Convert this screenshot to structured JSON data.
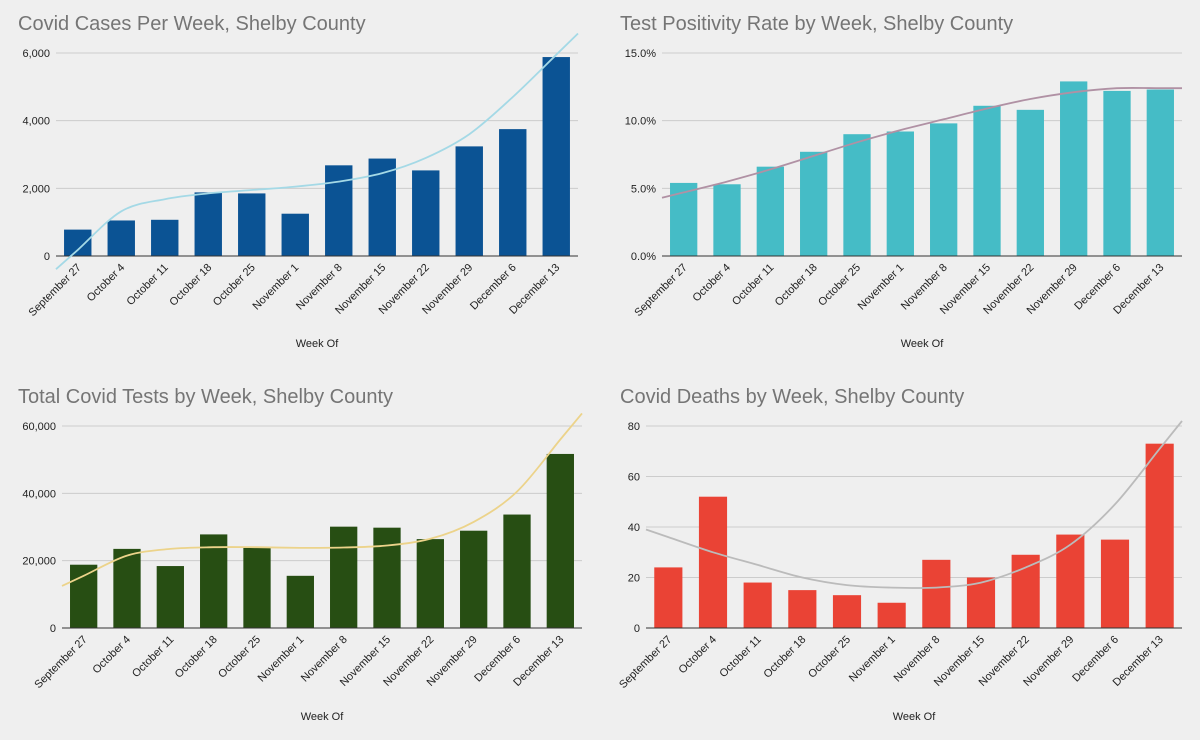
{
  "chart_data": [
    {
      "type": "bar",
      "title": "Covid Cases Per Week, Shelby County",
      "xlabel": "Week Of",
      "ylabel": "",
      "categories": [
        "September 27",
        "October 4",
        "October 11",
        "October 18",
        "October 25",
        "November 1",
        "November 8",
        "November 15",
        "November 22",
        "November 29",
        "December 6",
        "December 13"
      ],
      "values": [
        780,
        1050,
        1070,
        1880,
        1850,
        1250,
        2680,
        2880,
        2530,
        3240,
        3750,
        5880
      ],
      "ylim": [
        0,
        6000
      ],
      "yticks": [
        0,
        2000,
        4000,
        6000
      ],
      "ytick_labels": [
        "0",
        "2,000",
        "4,000",
        "6,000"
      ],
      "trend": [
        180,
        1320,
        1680,
        1850,
        1950,
        2050,
        2200,
        2450,
        2900,
        3600,
        4700,
        5950
      ],
      "bar_color": "#0b5394",
      "trend_color": "#a4d9e6",
      "grid": true
    },
    {
      "type": "bar",
      "title": "Test Positivity Rate by Week, Shelby County",
      "xlabel": "Week Of",
      "ylabel": "",
      "categories": [
        "September 27",
        "October 4",
        "October 11",
        "October 18",
        "October 25",
        "November 1",
        "November 8",
        "November 15",
        "November 22",
        "November 29",
        "December 6",
        "December 13"
      ],
      "values": [
        5.4,
        5.3,
        6.6,
        7.7,
        9.0,
        9.2,
        9.8,
        11.1,
        10.8,
        12.9,
        12.2,
        12.3
      ],
      "ylim": [
        0,
        15
      ],
      "yticks": [
        0,
        5,
        10,
        15
      ],
      "ytick_labels": [
        "0.0%",
        "5.0%",
        "10.0%",
        "15.0%"
      ],
      "trend": [
        4.7,
        5.5,
        6.4,
        7.4,
        8.4,
        9.3,
        10.1,
        10.9,
        11.6,
        12.1,
        12.4,
        12.4
      ],
      "bar_color": "#45bcc6",
      "trend_color": "#b091a4",
      "grid": true
    },
    {
      "type": "bar",
      "title": "Total Covid Tests by Week, Shelby County",
      "xlabel": "Week Of",
      "ylabel": "",
      "categories": [
        "September 27",
        "October 4",
        "October 11",
        "October 18",
        "October 25",
        "November 1",
        "November 8",
        "November 15",
        "November 22",
        "November 29",
        "December 6",
        "December 13"
      ],
      "values": [
        18800,
        23500,
        18400,
        27800,
        23800,
        15500,
        30100,
        29800,
        26400,
        28900,
        33700,
        51700
      ],
      "ylim": [
        0,
        60000
      ],
      "yticks": [
        0,
        20000,
        40000,
        60000
      ],
      "ytick_labels": [
        "0",
        "20,000",
        "40,000",
        "60,000"
      ],
      "trend": [
        15500,
        21500,
        23500,
        24000,
        24000,
        23800,
        23900,
        24500,
        26500,
        31500,
        40500,
        56000
      ],
      "bar_color": "#274e13",
      "trend_color": "#ecd38a",
      "grid": true
    },
    {
      "type": "bar",
      "title": "Covid Deaths by Week, Shelby County",
      "xlabel": "Week Of",
      "ylabel": "",
      "categories": [
        "September 27",
        "October 4",
        "October 11",
        "October 18",
        "October 25",
        "November 1",
        "November 8",
        "November 15",
        "November 22",
        "November 29",
        "December 6",
        "December 13"
      ],
      "values": [
        24,
        52,
        18,
        15,
        13,
        10,
        27,
        20,
        29,
        37,
        35,
        73
      ],
      "ylim": [
        0,
        80
      ],
      "yticks": [
        0,
        20,
        40,
        60,
        80
      ],
      "ytick_labels": [
        "0",
        "20",
        "40",
        "60",
        "80"
      ],
      "trend": [
        36,
        30,
        25,
        20,
        17,
        16,
        16,
        18,
        24,
        33,
        49,
        71
      ],
      "bar_color": "#ea4335",
      "trend_color": "#bbbbbb",
      "grid": true
    }
  ]
}
